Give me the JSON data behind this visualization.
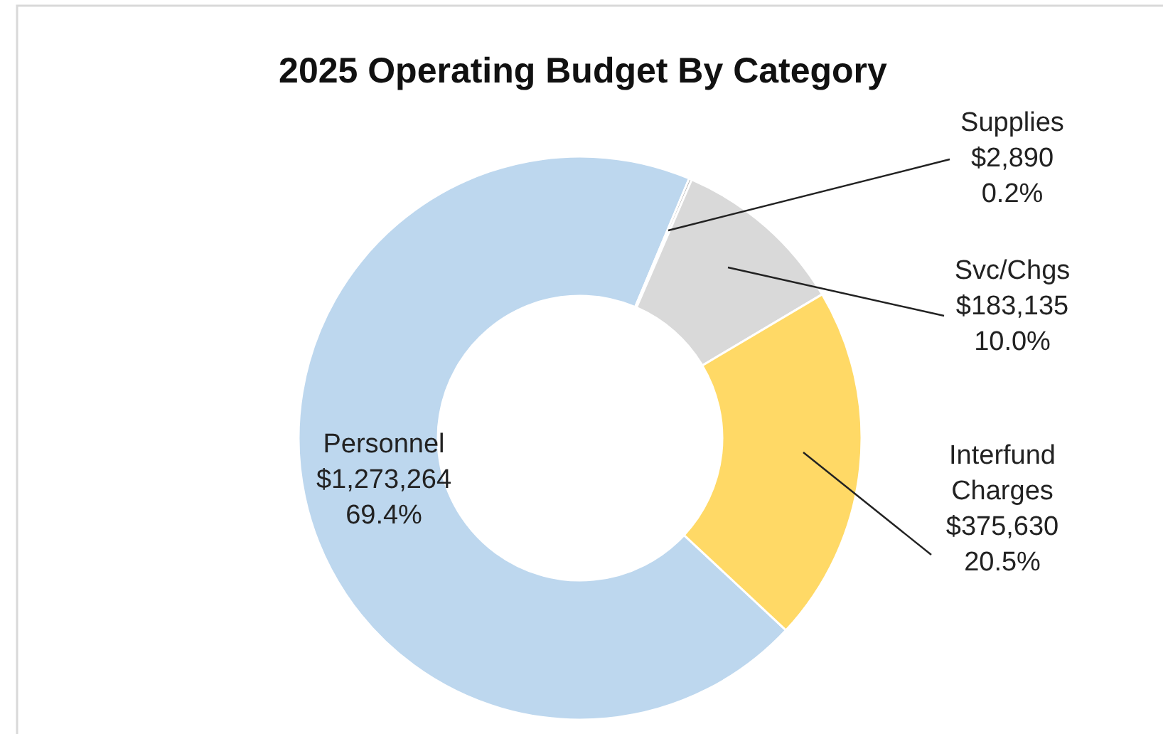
{
  "chart_data": {
    "type": "donut",
    "title": "2025 Operating Budget By Category",
    "categories": [
      "Personnel",
      "Supplies",
      "Svc/Chgs",
      "Interfund Charges"
    ],
    "values": [
      1273264,
      2890,
      183135,
      375630
    ],
    "colors": [
      "#bdd7ee",
      "#a6a6a6",
      "#d9d9d9",
      "#ffd966"
    ],
    "value_labels": [
      "$1,273,264\n69.4%",
      "$2,890\n0.2%",
      "$183,135\n10.0%",
      "$375,630\n20.5%"
    ]
  }
}
